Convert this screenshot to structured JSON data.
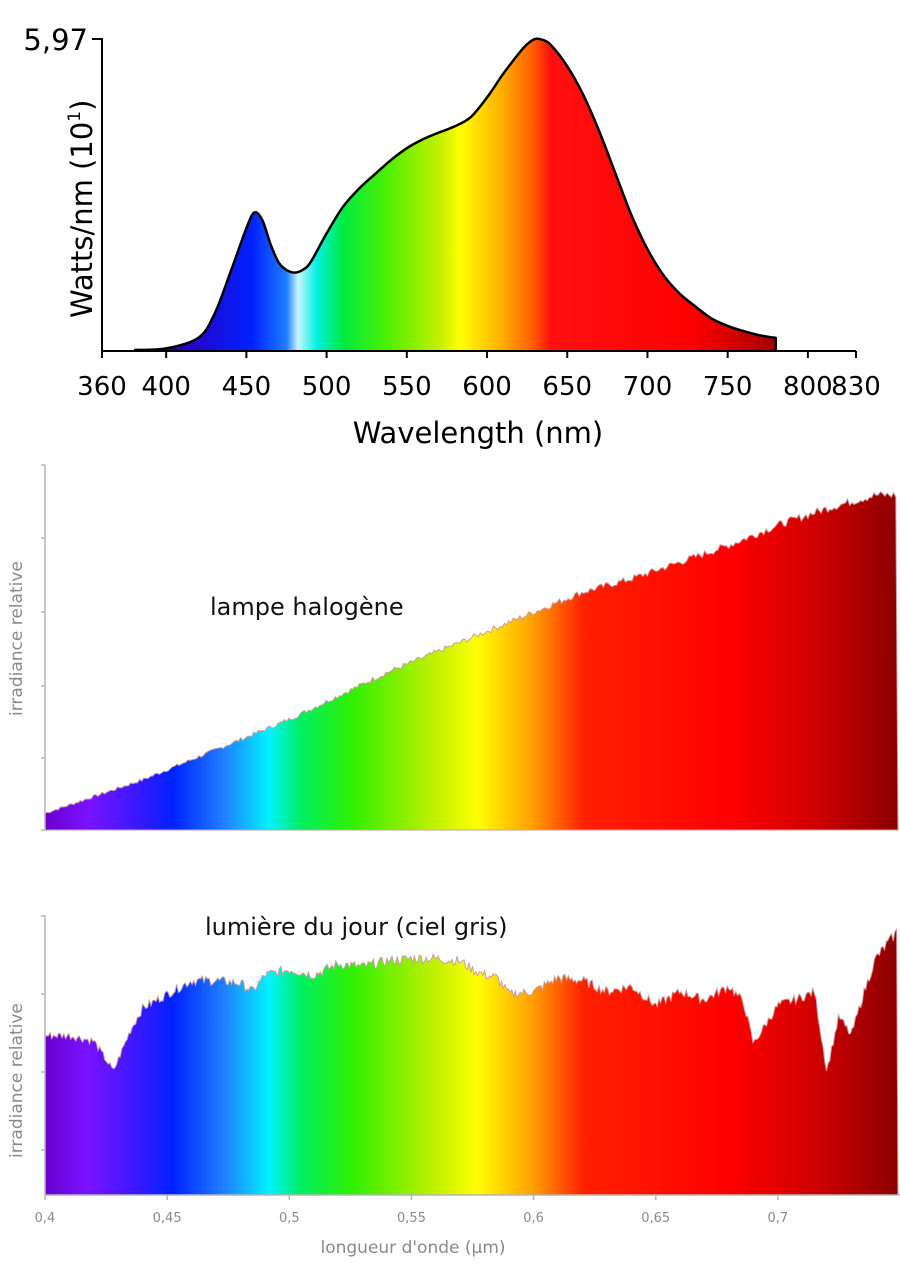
{
  "chart_data": [
    {
      "type": "area",
      "ymax_label": "5,97",
      "ylabel": "Watts/nm (10",
      "ylabel_sup": "1",
      "ylabel_close": ")",
      "xlabel": "Wavelength (nm)",
      "xlim": [
        360,
        830
      ],
      "ylim": [
        0,
        5.97
      ],
      "xticks": [
        "360",
        "400",
        "450",
        "500",
        "550",
        "600",
        "650",
        "700",
        "750",
        "800",
        "830"
      ],
      "xtick_values": [
        360,
        400,
        450,
        500,
        550,
        600,
        650,
        700,
        750,
        800,
        830
      ],
      "x": [
        380,
        400,
        420,
        430,
        440,
        450,
        455,
        460,
        465,
        470,
        475,
        480,
        485,
        490,
        500,
        510,
        520,
        530,
        540,
        550,
        560,
        570,
        580,
        590,
        600,
        610,
        620,
        625,
        630,
        635,
        640,
        650,
        660,
        670,
        680,
        690,
        700,
        710,
        720,
        730,
        740,
        750,
        760,
        770,
        780
      ],
      "y": [
        0.02,
        0.05,
        0.25,
        0.7,
        1.5,
        2.35,
        2.65,
        2.5,
        2.05,
        1.7,
        1.55,
        1.5,
        1.55,
        1.7,
        2.25,
        2.75,
        3.1,
        3.38,
        3.65,
        3.88,
        4.05,
        4.18,
        4.3,
        4.48,
        4.85,
        5.3,
        5.7,
        5.87,
        5.97,
        5.95,
        5.85,
        5.45,
        4.9,
        4.2,
        3.4,
        2.6,
        1.95,
        1.45,
        1.1,
        0.85,
        0.62,
        0.48,
        0.38,
        0.3,
        0.25
      ]
    },
    {
      "type": "area",
      "title": "lampe halogène",
      "ylabel": "irradiance relative",
      "x": [
        0.4,
        0.42,
        0.44,
        0.46,
        0.48,
        0.5,
        0.52,
        0.54,
        0.56,
        0.58,
        0.6,
        0.62,
        0.64,
        0.66,
        0.68,
        0.7,
        0.72,
        0.74,
        0.749
      ],
      "y": [
        0.05,
        0.1,
        0.15,
        0.21,
        0.27,
        0.33,
        0.4,
        0.47,
        0.53,
        0.59,
        0.65,
        0.71,
        0.75,
        0.8,
        0.85,
        0.91,
        0.96,
        1.0,
        1.0
      ]
    },
    {
      "type": "area",
      "title": "lumière du jour (ciel gris)",
      "ylabel": "irradiance relative",
      "xlabel": "longueur d'onde (µm)",
      "xlim": [
        0.4,
        0.75
      ],
      "xticks": [
        "0,4",
        "0,45",
        "0,5",
        "0,55",
        "0,6",
        "0,65",
        "0,7"
      ],
      "xtick_values": [
        0.4,
        0.45,
        0.5,
        0.55,
        0.6,
        0.65,
        0.7
      ],
      "x": [
        0.4,
        0.41,
        0.42,
        0.428,
        0.435,
        0.44,
        0.45,
        0.46,
        0.47,
        0.48,
        0.485,
        0.49,
        0.5,
        0.51,
        0.52,
        0.53,
        0.54,
        0.55,
        0.56,
        0.57,
        0.575,
        0.58,
        0.585,
        0.59,
        0.6,
        0.61,
        0.62,
        0.63,
        0.64,
        0.65,
        0.66,
        0.67,
        0.68,
        0.686,
        0.69,
        0.7,
        0.71,
        0.715,
        0.72,
        0.725,
        0.73,
        0.735,
        0.74,
        0.749
      ],
      "y": [
        0.58,
        0.58,
        0.56,
        0.45,
        0.6,
        0.68,
        0.73,
        0.78,
        0.78,
        0.77,
        0.74,
        0.8,
        0.82,
        0.8,
        0.84,
        0.83,
        0.85,
        0.86,
        0.86,
        0.85,
        0.82,
        0.8,
        0.79,
        0.73,
        0.74,
        0.79,
        0.78,
        0.74,
        0.76,
        0.69,
        0.74,
        0.71,
        0.76,
        0.7,
        0.55,
        0.69,
        0.72,
        0.74,
        0.45,
        0.65,
        0.58,
        0.73,
        0.86,
        0.96
      ]
    }
  ]
}
